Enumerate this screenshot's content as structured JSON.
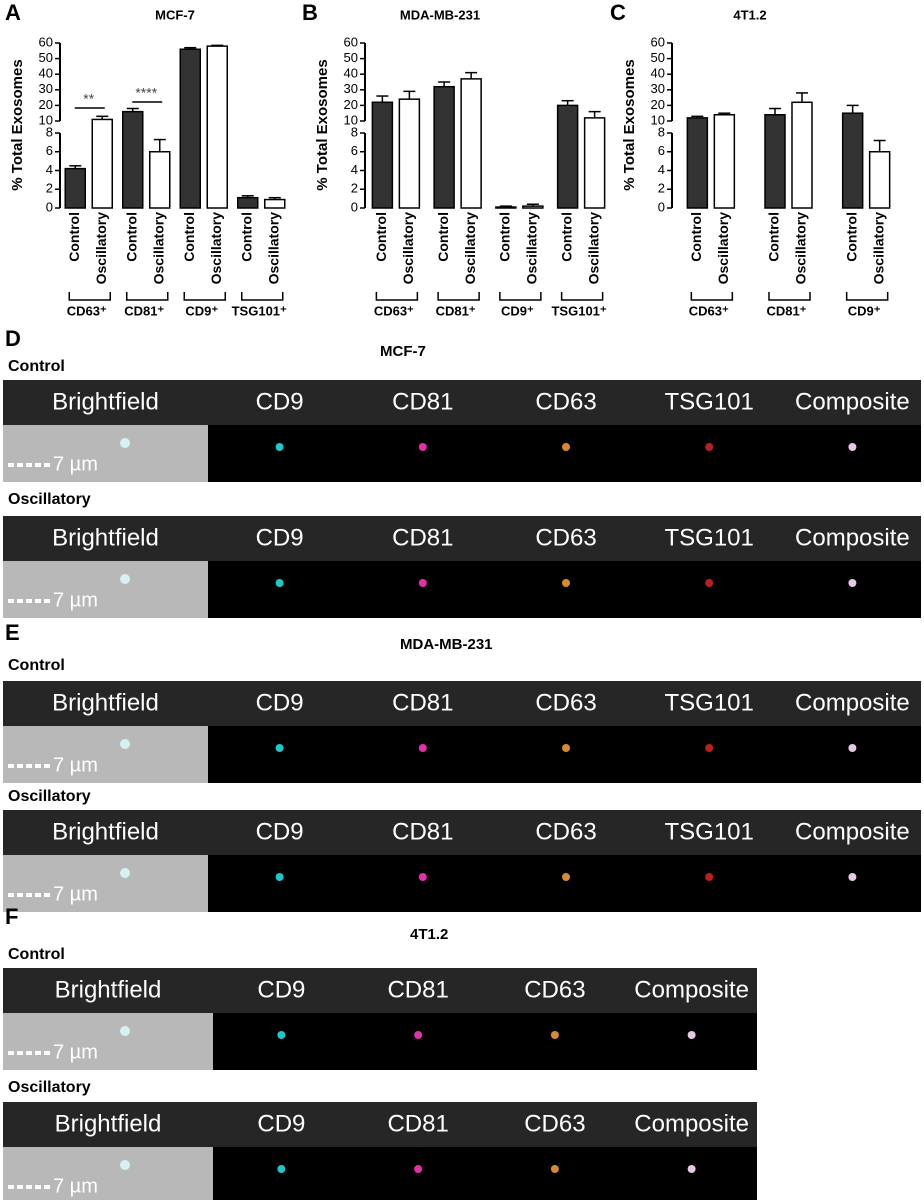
{
  "chart_data": [
    {
      "type": "bar",
      "panel": "A",
      "title": "MCF-7",
      "ylabel": "% Total Exosomes",
      "categories": [
        "CD63⁺",
        "CD81⁺",
        "CD9⁺",
        "TSG101⁺"
      ],
      "series": [
        {
          "name": "Control",
          "color": "#333333",
          "values": [
            4.2,
            16,
            56,
            1.1
          ],
          "errors": [
            0.3,
            2,
            1,
            0.2
          ]
        },
        {
          "name": "Oscillatory",
          "color": "#ffffff",
          "values": [
            11,
            6,
            58,
            0.9
          ],
          "errors": [
            2,
            1.3,
            0.5,
            0.2
          ]
        }
      ],
      "ylim": [
        0,
        60
      ],
      "ybreak": [
        8,
        10
      ],
      "yticks": [
        0,
        2,
        4,
        6,
        8,
        10,
        20,
        30,
        40,
        50,
        60
      ],
      "annotations": [
        {
          "text": "**",
          "category": "CD63⁺"
        },
        {
          "text": "****",
          "category": "CD81⁺"
        }
      ]
    },
    {
      "type": "bar",
      "panel": "B",
      "title": "MDA-MB-231",
      "ylabel": "% Total Exosomes",
      "categories": [
        "CD63⁺",
        "CD81⁺",
        "CD9⁺",
        "TSG101⁺"
      ],
      "series": [
        {
          "name": "Control",
          "color": "#333333",
          "values": [
            22,
            32,
            0.1,
            20
          ],
          "errors": [
            4,
            3,
            0.1,
            3
          ]
        },
        {
          "name": "Oscillatory",
          "color": "#ffffff",
          "values": [
            24,
            37,
            0.2,
            12
          ],
          "errors": [
            5,
            4,
            0.2,
            4
          ]
        }
      ],
      "ylim": [
        0,
        60
      ],
      "ybreak": [
        8,
        10
      ],
      "yticks": [
        0,
        2,
        4,
        6,
        8,
        10,
        20,
        30,
        40,
        50,
        60
      ]
    },
    {
      "type": "bar",
      "panel": "C",
      "title": "4T1.2",
      "ylabel": "% Total Exosomes",
      "categories": [
        "CD63⁺",
        "CD81⁺",
        "CD9⁺"
      ],
      "series": [
        {
          "name": "Control",
          "color": "#333333",
          "values": [
            12,
            14,
            15
          ],
          "errors": [
            1,
            4,
            5
          ]
        },
        {
          "name": "Oscillatory",
          "color": "#ffffff",
          "values": [
            14,
            22,
            6
          ],
          "errors": [
            1,
            6,
            1.2
          ]
        }
      ],
      "ylim": [
        0,
        60
      ],
      "ybreak": [
        8,
        10
      ],
      "yticks": [
        0,
        2,
        4,
        6,
        8,
        10,
        20,
        30,
        40,
        50,
        60
      ]
    }
  ],
  "image_panels": [
    {
      "panel": "D",
      "title": "MCF-7",
      "rows": [
        {
          "label": "Control",
          "channels": [
            "Brightfield",
            "CD9",
            "CD81",
            "CD63",
            "TSG101",
            "Composite"
          ],
          "scale_bar": "7 µm"
        },
        {
          "label": "Oscillatory",
          "channels": [
            "Brightfield",
            "CD9",
            "CD81",
            "CD63",
            "TSG101",
            "Composite"
          ],
          "scale_bar": "7 µm"
        }
      ]
    },
    {
      "panel": "E",
      "title": "MDA-MB-231",
      "rows": [
        {
          "label": "Control",
          "channels": [
            "Brightfield",
            "CD9",
            "CD81",
            "CD63",
            "TSG101",
            "Composite"
          ],
          "scale_bar": "7 µm"
        },
        {
          "label": "Oscillatory",
          "channels": [
            "Brightfield",
            "CD9",
            "CD81",
            "CD63",
            "TSG101",
            "Composite"
          ],
          "scale_bar": "7 µm"
        }
      ]
    },
    {
      "panel": "F",
      "title": "4T1.2",
      "rows": [
        {
          "label": "Control",
          "channels": [
            "Brightfield",
            "CD9",
            "CD81",
            "CD63",
            "Composite"
          ],
          "scale_bar": "7 µm"
        },
        {
          "label": "Oscillatory",
          "channels": [
            "Brightfield",
            "CD9",
            "CD81",
            "CD63",
            "Composite"
          ],
          "scale_bar": "7 µm"
        }
      ]
    }
  ]
}
